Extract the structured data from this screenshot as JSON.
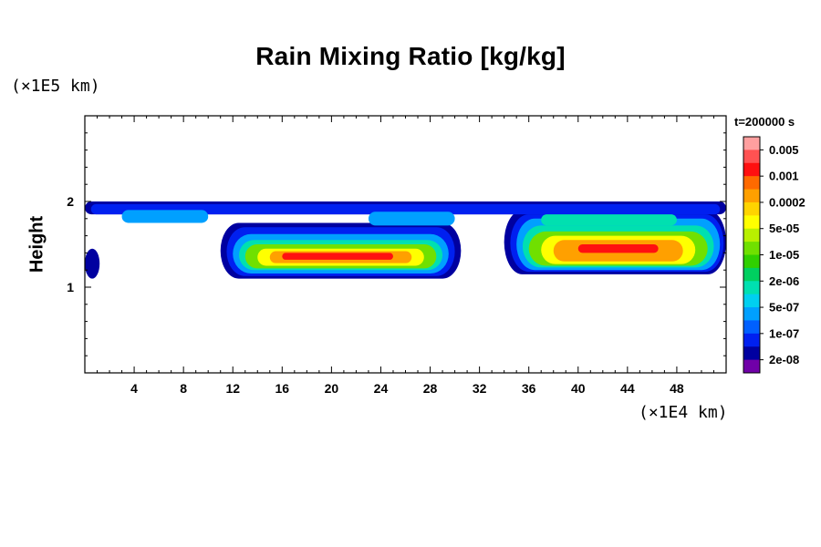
{
  "chart_data": {
    "type": "heatmap",
    "title": "Rain Mixing Ratio [kg/kg]",
    "ylabel": "Height",
    "y_unit": "(×1E5 km)",
    "x_unit": "(×1E4 km)",
    "time_label": "t=200000 s",
    "xlim": [
      0,
      52
    ],
    "ylim": [
      0,
      3
    ],
    "x_ticks": [
      4,
      8,
      12,
      16,
      20,
      24,
      28,
      32,
      36,
      40,
      44,
      48
    ],
    "y_ticks": [
      1,
      2
    ],
    "colorbar_levels": [
      "0.005",
      "0.001",
      "0.0002",
      "5e-05",
      "1e-05",
      "2e-06",
      "5e-07",
      "1e-07",
      "2e-08"
    ],
    "colorbar_colors": [
      "#ff9f9f",
      "#ff5252",
      "#ff1010",
      "#ff6a00",
      "#ffa000",
      "#ffd400",
      "#ffff00",
      "#b9f000",
      "#70e000",
      "#30d000",
      "#00d060",
      "#00e0b0",
      "#00d0f0",
      "#00a0ff",
      "#0060ff",
      "#0020f0",
      "#0000a0",
      "#7000a8"
    ],
    "layers": [
      {
        "level_index": 16,
        "cells": [
          [
            0,
            1.85,
            52,
            2.0
          ],
          [
            11,
            1.1,
            30.5,
            1.75
          ],
          [
            34,
            1.15,
            52,
            1.9
          ],
          [
            0,
            1.1,
            1.2,
            1.45
          ]
        ]
      },
      {
        "level_index": 15,
        "cells": [
          [
            0.5,
            1.85,
            51.5,
            1.97
          ],
          [
            11.5,
            1.13,
            30,
            1.7
          ],
          [
            34.5,
            1.18,
            51.8,
            1.85
          ]
        ]
      },
      {
        "level_index": 13,
        "cells": [
          [
            12,
            1.16,
            29.5,
            1.62
          ],
          [
            35,
            1.2,
            51.5,
            1.8
          ],
          [
            3,
            1.75,
            10,
            1.9
          ],
          [
            23,
            1.72,
            30,
            1.88
          ]
        ]
      },
      {
        "level_index": 11,
        "cells": [
          [
            12.5,
            1.2,
            29,
            1.55
          ],
          [
            35.5,
            1.23,
            51,
            1.72
          ],
          [
            37,
            1.72,
            48,
            1.85
          ]
        ]
      },
      {
        "level_index": 8,
        "cells": [
          [
            13,
            1.22,
            28.5,
            1.5
          ],
          [
            36,
            1.25,
            50.5,
            1.65
          ]
        ]
      },
      {
        "level_index": 6,
        "cells": [
          [
            14,
            1.25,
            27.5,
            1.45
          ],
          [
            37,
            1.27,
            49.5,
            1.6
          ]
        ]
      },
      {
        "level_index": 4,
        "cells": [
          [
            15,
            1.28,
            26.5,
            1.42
          ],
          [
            38,
            1.3,
            48.5,
            1.55
          ]
        ]
      },
      {
        "level_index": 2,
        "cells": [
          [
            16,
            1.32,
            25,
            1.4
          ],
          [
            40,
            1.4,
            46.5,
            1.5
          ]
        ]
      }
    ]
  }
}
